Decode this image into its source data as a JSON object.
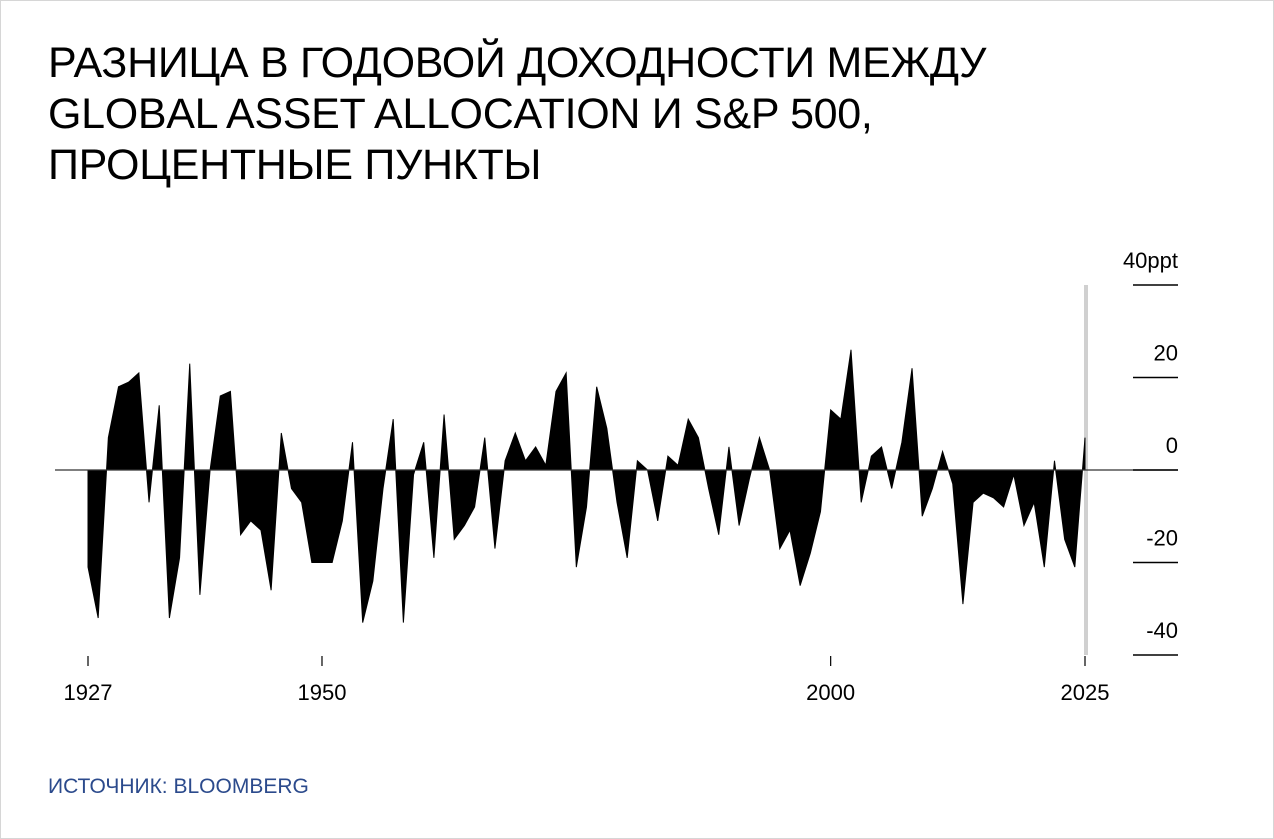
{
  "chart_data": {
    "type": "area",
    "title": "РАЗНИЦА В ГОДОВОЙ ДОХОДНОСТИ МЕЖДУ GLOBAL ASSET ALLOCATION И S&P 500, ПРОЦЕНТНЫЕ ПУНКТЫ",
    "source": "ИСТОЧНИК: BLOOMBERG",
    "color": "#000000",
    "x": [
      1927,
      1928,
      1929,
      1930,
      1931,
      1932,
      1933,
      1934,
      1935,
      1936,
      1937,
      1938,
      1939,
      1940,
      1941,
      1942,
      1943,
      1944,
      1945,
      1946,
      1947,
      1948,
      1949,
      1950,
      1951,
      1952,
      1953,
      1954,
      1955,
      1956,
      1957,
      1958,
      1959,
      1960,
      1961,
      1962,
      1963,
      1964,
      1965,
      1966,
      1967,
      1968,
      1969,
      1970,
      1971,
      1972,
      1973,
      1974,
      1975,
      1976,
      1977,
      1978,
      1979,
      1980,
      1981,
      1982,
      1983,
      1984,
      1985,
      1986,
      1987,
      1988,
      1989,
      1990,
      1991,
      1992,
      1993,
      1994,
      1995,
      1996,
      1997,
      1998,
      1999,
      2000,
      2001,
      2002,
      2003,
      2004,
      2005,
      2006,
      2007,
      2008,
      2009,
      2010,
      2011,
      2012,
      2013,
      2014,
      2015,
      2016,
      2017,
      2018,
      2019,
      2020,
      2021,
      2022,
      2023,
      2024,
      2025
    ],
    "values": [
      -21,
      -32,
      7,
      18,
      19,
      21,
      -7,
      14,
      -32,
      -19,
      23,
      -27,
      0,
      16,
      17,
      -14,
      -11,
      -13,
      -26,
      8,
      -4,
      -7,
      -20,
      -20,
      -20,
      -11,
      6,
      -33,
      -24,
      -4,
      11,
      -33,
      -1,
      6,
      -19,
      12,
      -15,
      -12,
      -8,
      7,
      -17,
      2,
      8,
      2,
      5,
      1,
      17,
      21,
      -21,
      -8,
      18,
      9,
      -7,
      -19,
      2,
      0,
      -11,
      3,
      1,
      11,
      7,
      -4,
      -14,
      5,
      -12,
      -2,
      7,
      0,
      -17,
      -13,
      -25,
      -18,
      -9,
      13,
      11,
      26,
      -7,
      3,
      5,
      -4,
      6,
      22,
      -10,
      -4,
      4,
      -3,
      -29,
      -7,
      -5,
      -6,
      -8,
      -1,
      -12,
      -7,
      -21,
      2,
      -15,
      -21,
      7
    ],
    "xlim": [
      1927,
      2025
    ],
    "xticks": [
      1927,
      1950,
      2000,
      2025
    ],
    "ylim": [
      -40,
      40
    ],
    "yticks": [
      -40,
      -20,
      0,
      20,
      {
        "value": 40,
        "label": "40ppt"
      }
    ]
  }
}
